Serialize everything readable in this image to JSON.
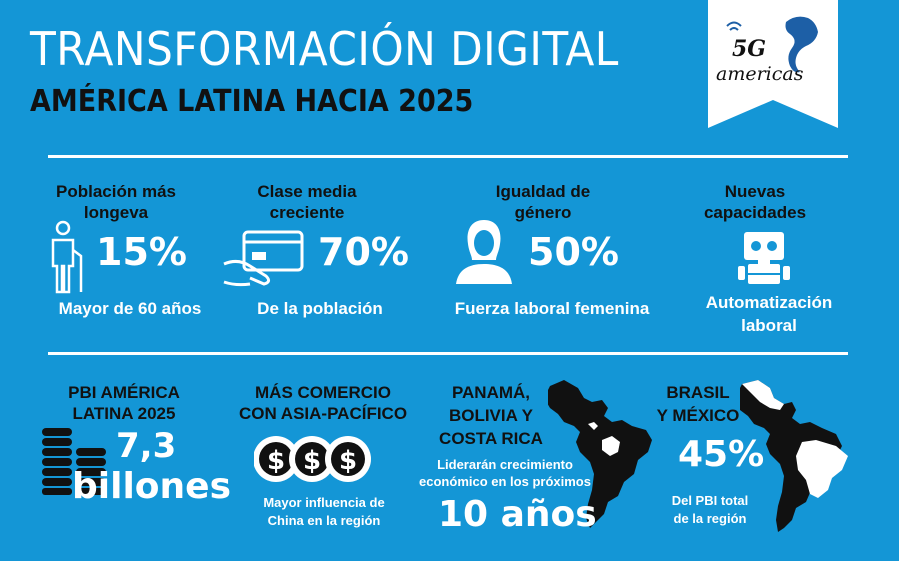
{
  "header": {
    "title": "TRANSFORMACIÓN DIGITAL",
    "subtitle": "AMÉRICA LATINA HACIA 2025",
    "logo_text_1": "5G",
    "logo_text_2": "americas"
  },
  "row1": [
    {
      "label": "Población más longeva",
      "value": "15%",
      "caption": "Mayor de 60 años",
      "icon": "elderly-person-icon"
    },
    {
      "label": "Clase media creciente",
      "value": "70%",
      "caption": "De la población",
      "icon": "credit-card-hand-icon"
    },
    {
      "label": "Igualdad de género",
      "value": "50%",
      "caption": "Fuerza laboral femenina",
      "icon": "woman-icon"
    },
    {
      "label": "Nuevas capacidades",
      "value": "",
      "caption": "Automatización laboral",
      "icon": "robot-icon"
    }
  ],
  "row2": {
    "pbi": {
      "label_1": "PBI AMÉRICA",
      "label_2": "LATINA 2025",
      "value_1": "7,3",
      "value_2": "billones",
      "icon": "coin-stacks-icon"
    },
    "comercio": {
      "label_1": "MÁS COMERCIO",
      "label_2": "CON ASIA-PACÍFICO",
      "caption_1": "Mayor influencia de",
      "caption_2": "China en la región",
      "icon": "dollar-coins-icon"
    },
    "crecimiento": {
      "label_1": "PANAMÁ,",
      "label_2": "BOLIVIA Y",
      "label_3": "COSTA RICA",
      "caption_1": "Liderarán crecimiento",
      "caption_2": "económico en los próximos",
      "value": "10 años",
      "icon": "latin-america-map-icon"
    },
    "brasil": {
      "label_1": "BRASIL",
      "label_2": "Y MÉXICO",
      "value": "45%",
      "caption_1": "Del PBI total",
      "caption_2": "de la región",
      "icon": "latin-america-map-highlight-icon"
    }
  },
  "colors": {
    "background": "#1496d6",
    "white": "#ffffff",
    "dark": "#111111"
  }
}
